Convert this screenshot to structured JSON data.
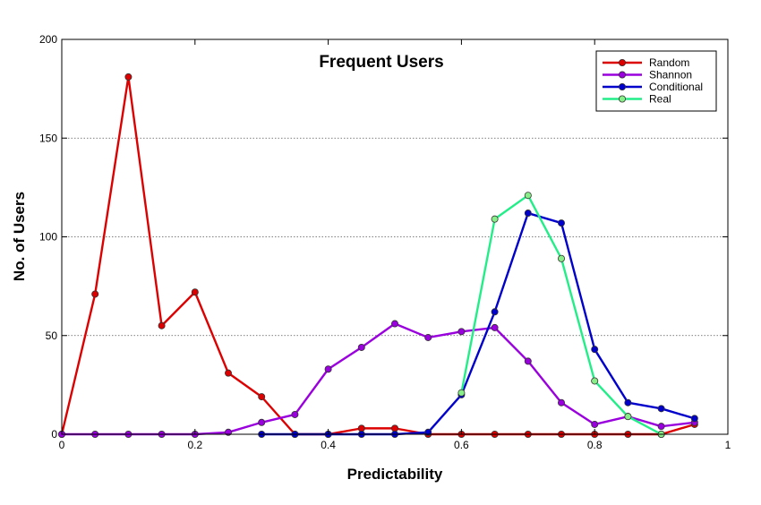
{
  "chart_data": {
    "type": "line",
    "title": "Frequent Users",
    "xlabel": "Predictability",
    "ylabel": "No. of Users",
    "xlim": [
      0,
      1
    ],
    "ylim": [
      0,
      200
    ],
    "x_ticks": [
      "0",
      "0.2",
      "0.4",
      "0.6",
      "0.8",
      "1"
    ],
    "y_ticks": [
      "0",
      "50",
      "100",
      "150",
      "200"
    ],
    "grid": "horizontal dotted",
    "legend_position": "top-right",
    "series": [
      {
        "name": "Random",
        "color": "#dd0000",
        "marker_fill": "#dd0000",
        "x": [
          0,
          0.05,
          0.1,
          0.15,
          0.2,
          0.25,
          0.3,
          0.35,
          0.4,
          0.45,
          0.5,
          0.55,
          0.6,
          0.65,
          0.7,
          0.75,
          0.8,
          0.85,
          0.9,
          0.95
        ],
        "y": [
          0,
          71,
          181,
          55,
          72,
          31,
          19,
          0,
          0,
          3,
          3,
          0,
          0,
          0,
          0,
          0,
          0,
          0,
          0,
          5
        ]
      },
      {
        "name": "Shannon",
        "color": "#9900dd",
        "marker_fill": "#9900dd",
        "x": [
          0,
          0.05,
          0.1,
          0.15,
          0.2,
          0.25,
          0.3,
          0.35,
          0.4,
          0.45,
          0.5,
          0.55,
          0.6,
          0.65,
          0.7,
          0.75,
          0.8,
          0.85,
          0.9,
          0.95
        ],
        "y": [
          0,
          0,
          0,
          0,
          0,
          1,
          6,
          10,
          33,
          44,
          56,
          49,
          52,
          54,
          37,
          16,
          5,
          9,
          4,
          6
        ]
      },
      {
        "name": "Conditional",
        "color": "#0000cc",
        "marker_fill": "#0000cc",
        "x": [
          0.3,
          0.35,
          0.4,
          0.45,
          0.5,
          0.55,
          0.6,
          0.65,
          0.7,
          0.75,
          0.8,
          0.85,
          0.9,
          0.95
        ],
        "y": [
          0,
          0,
          0,
          0,
          0,
          1,
          20,
          62,
          112,
          107,
          43,
          16,
          13,
          8
        ]
      },
      {
        "name": "Real",
        "color": "#22ee88",
        "marker_fill": "#88ee88",
        "x": [
          0.6,
          0.65,
          0.7,
          0.75,
          0.8,
          0.85,
          0.9
        ],
        "y": [
          21,
          109,
          121,
          89,
          27,
          9,
          0
        ]
      }
    ]
  }
}
